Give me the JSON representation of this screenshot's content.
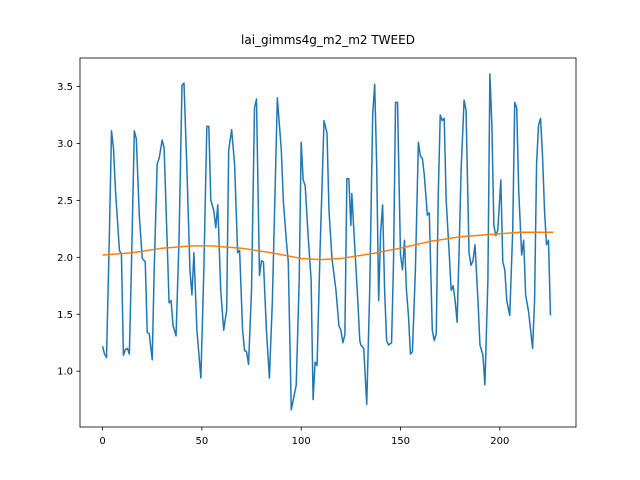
{
  "chart_data": {
    "type": "line",
    "title": "lai_gimms4g_m2_m2 TWEED",
    "xlim": [
      -11.35,
      238.35
    ],
    "ylim": [
      0.51,
      3.75
    ],
    "xticks": [
      0,
      50,
      100,
      150,
      200
    ],
    "yticks": [
      {
        "value": 1,
        "label": "1.0"
      },
      1.5,
      {
        "value": 2,
        "label": "2.0"
      },
      2.5,
      {
        "value": 3,
        "label": "3.0"
      },
      3.5
    ],
    "series": [
      {
        "color": "#1f77b4",
        "x": [
          0,
          1,
          2,
          3.5,
          4.5,
          5.5,
          6.5,
          8.5,
          9.5,
          10.5,
          11.5,
          12.5,
          13.5,
          14.5,
          16,
          17,
          18.5,
          20,
          21.5,
          22.5,
          23.5,
          25,
          26,
          27.5,
          28.5,
          30,
          31,
          32.5,
          33.5,
          34.5,
          35.5,
          37,
          38.5,
          40,
          41,
          42.5,
          44,
          45,
          46,
          47.5,
          49.5,
          51,
          52.5,
          53.5,
          54.5,
          56,
          57,
          58,
          59.5,
          61,
          62.5,
          63.5,
          65,
          66.5,
          68,
          69,
          70.5,
          71.5,
          72.5,
          73.5,
          75,
          76.5,
          77.5,
          79,
          80,
          81,
          82.5,
          84,
          85.5,
          88,
          90,
          91,
          92.5,
          93.5,
          95,
          96.5,
          97.5,
          99,
          100,
          101,
          102,
          103.5,
          105,
          106,
          107,
          108,
          109.5,
          111.5,
          113,
          114,
          115.5,
          117.5,
          119,
          120,
          121,
          122,
          123,
          124,
          125,
          125.5,
          126.5,
          128.5,
          129.5,
          130,
          131.5,
          133,
          134.5,
          136,
          137,
          138,
          139,
          140,
          141,
          142,
          143,
          144,
          145.5,
          146.5,
          147.5,
          148.5,
          150,
          151,
          152,
          153,
          154,
          155,
          156,
          157.5,
          159,
          160,
          161,
          162,
          163.5,
          164.5,
          166,
          167,
          168,
          169,
          170,
          171,
          172,
          173,
          174.5,
          175.5,
          176.5,
          177.5,
          178.5,
          179.5,
          180.5,
          182,
          183,
          184.5,
          185.5,
          186.5,
          187.5,
          189,
          190,
          191.5,
          192.5,
          194,
          195,
          196,
          197,
          198,
          199,
          200.5,
          201.5,
          202.5,
          203.5,
          205,
          206.5,
          207.5,
          208.5,
          209.5,
          211,
          212,
          213,
          214.5,
          215.5,
          216.5,
          217.5,
          218.5,
          219.5,
          220.5,
          221.5,
          222.5,
          223.5,
          224.5,
          225.5
        ],
        "values": [
          1.22,
          1.15,
          1.12,
          2.24,
          3.11,
          2.96,
          2.59,
          2.06,
          2.03,
          1.14,
          1.19,
          1.2,
          1.15,
          1.89,
          3.11,
          3.04,
          2.37,
          1.99,
          1.96,
          1.34,
          1.33,
          1.1,
          1.89,
          2.82,
          2.87,
          3.03,
          2.96,
          2.15,
          1.6,
          1.62,
          1.4,
          1.31,
          2.15,
          3.51,
          3.53,
          2.76,
          1.89,
          1.67,
          2.04,
          1.36,
          0.94,
          1.89,
          3.15,
          3.15,
          2.5,
          2.41,
          2.26,
          2.46,
          1.71,
          1.36,
          1.54,
          2.94,
          3.12,
          2.81,
          2.04,
          2.06,
          1.36,
          1.18,
          1.17,
          1.06,
          1.71,
          3.31,
          3.39,
          1.84,
          1.97,
          1.96,
          1.36,
          0.94,
          1.62,
          3.4,
          2.94,
          2.5,
          2.15,
          1.96,
          0.66,
          0.79,
          0.88,
          1.8,
          3.01,
          2.68,
          2.63,
          2.19,
          1.8,
          0.75,
          1.08,
          1.05,
          2.06,
          3.2,
          3.09,
          2.41,
          1.99,
          1.71,
          1.4,
          1.36,
          1.25,
          1.32,
          2.69,
          2.69,
          2.28,
          2.56,
          2.24,
          1.62,
          1.27,
          1.23,
          1.2,
          0.71,
          1.71,
          3.25,
          3.52,
          2.81,
          1.62,
          2.22,
          2.46,
          1.71,
          1.27,
          1.23,
          1.25,
          1.97,
          3.36,
          3.36,
          2.02,
          1.89,
          2.15,
          1.71,
          1.49,
          1.15,
          1.17,
          1.89,
          3.01,
          2.89,
          2.87,
          2.72,
          2.37,
          2.39,
          1.36,
          1.27,
          1.33,
          2.54,
          3.25,
          3.2,
          3.22,
          2.5,
          2.04,
          1.71,
          1.75,
          1.62,
          1.43,
          2.06,
          2.76,
          3.38,
          3.29,
          2.04,
          1.93,
          1.97,
          2.11,
          1.62,
          1.23,
          1.14,
          0.88,
          1.8,
          3.61,
          3.16,
          2.28,
          2.19,
          2.24,
          2.68,
          1.96,
          1.89,
          1.62,
          1.49,
          2.24,
          3.36,
          3.31,
          2.59,
          2.02,
          2.15,
          1.67,
          1.52,
          1.36,
          1.2,
          1.62,
          2.82,
          3.16,
          3.22,
          2.89,
          2.41,
          2.11,
          2.15,
          1.49
        ]
      },
      {
        "color": "#ff7f0e",
        "x": [
          0,
          15,
          30,
          45,
          55,
          70,
          85,
          100,
          110,
          120,
          135,
          150,
          165,
          180,
          195,
          210,
          227
        ],
        "values": [
          2.02,
          2.04,
          2.08,
          2.1,
          2.1,
          2.08,
          2.04,
          1.99,
          1.98,
          1.99,
          2.03,
          2.08,
          2.14,
          2.18,
          2.2,
          2.22,
          2.22
        ]
      }
    ]
  }
}
